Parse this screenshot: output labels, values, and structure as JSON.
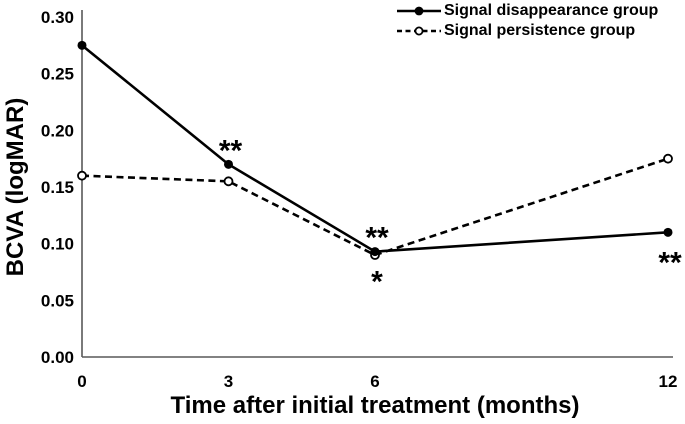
{
  "chart_data": {
    "type": "line",
    "title": "",
    "xlabel": "Time after initial treatment (months)",
    "ylabel": "BCVA (logMAR)",
    "x": [
      0,
      3,
      6,
      12
    ],
    "xtick_labels": [
      "0",
      "3",
      "6",
      "12"
    ],
    "ytick_labels": [
      "0.00",
      "0.05",
      "0.10",
      "0.15",
      "0.20",
      "0.25",
      "0.30"
    ],
    "ytick_values": [
      0.0,
      0.05,
      0.1,
      0.15,
      0.2,
      0.25,
      0.3
    ],
    "xlim": [
      0,
      12
    ],
    "ylim": [
      0,
      0.3
    ],
    "grid": false,
    "legend_position": "top-right",
    "axis_color": "#595959",
    "series": [
      {
        "name": "Signal disappearance group",
        "line_style": "solid",
        "marker": "filled-circle",
        "color": "#000000",
        "values": [
          0.275,
          0.17,
          0.093,
          0.11
        ]
      },
      {
        "name": "Signal persistence group",
        "line_style": "dashed",
        "marker": "open-circle",
        "color": "#000000",
        "values": [
          0.16,
          0.155,
          0.09,
          0.175
        ]
      }
    ],
    "annotations": [
      {
        "text": "**",
        "month": 3,
        "series": 0,
        "position": "above"
      },
      {
        "text": "**",
        "month": 6,
        "series": 0,
        "position": "above"
      },
      {
        "text": "*",
        "month": 6,
        "series": 0,
        "position": "below"
      },
      {
        "text": "**",
        "month": 12,
        "series": 0,
        "position": "below"
      }
    ]
  }
}
